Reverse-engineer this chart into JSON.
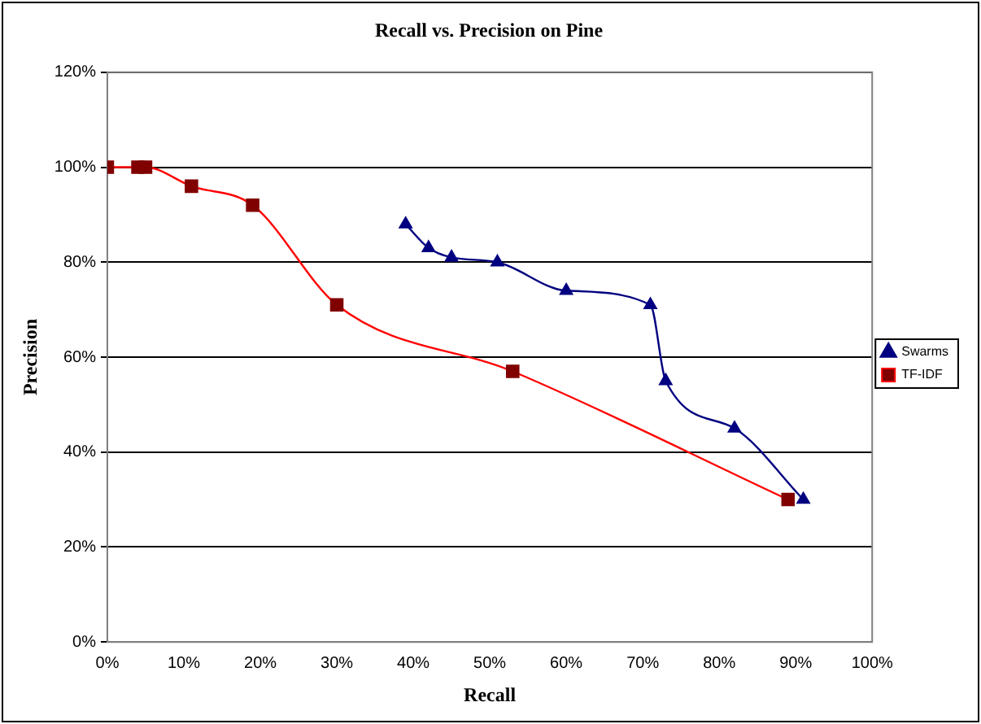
{
  "chart_data": {
    "type": "line",
    "title": "Recall vs. Precision on Pine",
    "xlabel": "Recall",
    "ylabel": "Precision",
    "xlim": [
      0,
      100
    ],
    "xticks": [
      {
        "value": 0,
        "label": "0%"
      },
      {
        "value": 10,
        "label": "10%"
      },
      {
        "value": 20,
        "label": "20%"
      },
      {
        "value": 30,
        "label": "30%"
      },
      {
        "value": 40,
        "label": "40%"
      },
      {
        "value": 50,
        "label": "50%"
      },
      {
        "value": 60,
        "label": "60%"
      },
      {
        "value": 70,
        "label": "70%"
      },
      {
        "value": 80,
        "label": "80%"
      },
      {
        "value": 90,
        "label": "90%"
      },
      {
        "value": 100,
        "label": "100%"
      }
    ],
    "ylim": [
      0,
      120
    ],
    "yticks": [
      {
        "value": 0,
        "label": "0%"
      },
      {
        "value": 20,
        "label": "20%"
      },
      {
        "value": 40,
        "label": "40%"
      },
      {
        "value": 60,
        "label": "60%"
      },
      {
        "value": 80,
        "label": "80%"
      },
      {
        "value": 100,
        "label": "100%"
      },
      {
        "value": 120,
        "label": "120%"
      }
    ],
    "grid": "y",
    "legend": "right",
    "line_style": "solid",
    "series": [
      {
        "name": "Swarms",
        "color": "#000080",
        "marker": "triangle",
        "x": [
          39,
          42,
          45,
          51,
          60,
          71,
          73,
          82,
          91
        ],
        "values": [
          88,
          83,
          81,
          80,
          74,
          71,
          55,
          45,
          30
        ]
      },
      {
        "name": "TF-IDF",
        "color": "#ff0000",
        "marker": "square",
        "x": [
          0,
          4,
          5,
          11,
          19,
          30,
          53,
          89
        ],
        "values": [
          100,
          100,
          100,
          96,
          92,
          71,
          57,
          30
        ]
      }
    ]
  }
}
